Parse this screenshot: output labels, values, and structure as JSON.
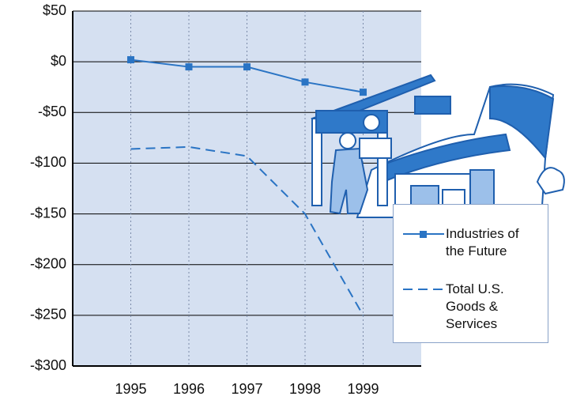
{
  "chart_data": {
    "type": "line",
    "x": [
      1995,
      1996,
      1997,
      1998,
      1999
    ],
    "xlim": [
      1994,
      2000
    ],
    "xticks": [
      1995,
      1996,
      1997,
      1998,
      1999
    ],
    "ylim": [
      -300,
      50
    ],
    "yticks": [
      {
        "value": 50,
        "label": "$50"
      },
      {
        "value": 0,
        "label": "$0"
      },
      {
        "value": -50,
        "label": "-$50"
      },
      {
        "value": -100,
        "label": "-$100"
      },
      {
        "value": -150,
        "label": "-$150"
      },
      {
        "value": -200,
        "label": "-$200"
      },
      {
        "value": -250,
        "label": "-$250"
      },
      {
        "value": -300,
        "label": "-$300"
      }
    ],
    "grid": true,
    "series": [
      {
        "name": "Industries of the Future",
        "color": "#2a74c4",
        "style": "solid-marker",
        "values": [
          2,
          -5,
          -5,
          -20,
          -30
        ]
      },
      {
        "name": "Total U.S. Goods & Services",
        "color": "#2a74c4",
        "style": "dashed",
        "values": [
          -86,
          -84,
          -93,
          -150,
          -250
        ]
      }
    ]
  }
}
